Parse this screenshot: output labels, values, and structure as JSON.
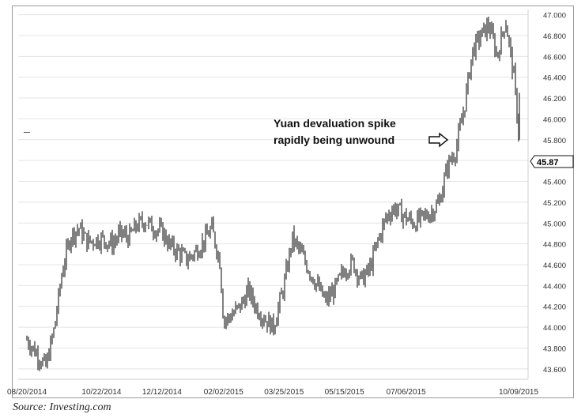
{
  "chart_data": {
    "type": "candlestick",
    "title": "",
    "xlabel": "",
    "ylabel": "",
    "ylim": [
      43.5,
      47.05
    ],
    "y_ticks": [
      "47.000",
      "46.800",
      "46.600",
      "46.400",
      "46.200",
      "46.000",
      "45.800",
      "45.600",
      "45.400",
      "45.200",
      "45.000",
      "44.800",
      "44.600",
      "44.400",
      "44.200",
      "44.000",
      "43.800",
      "43.600"
    ],
    "x_ticks": [
      "08/20/2014",
      "10/22/2014",
      "12/12/2014",
      "02/02/2015",
      "03/25/2015",
      "05/15/2015",
      "07/06/2015",
      "10/09/2015"
    ],
    "last_price_label": "45.87",
    "grid": true,
    "annotation": {
      "lines": [
        "Yuan devaluation spike",
        "rapidly being unwound"
      ]
    },
    "series": [
      {
        "name": "",
        "values": [
          [
            "08/20/2014",
            43.88
          ],
          [
            "09/05/2014",
            43.62
          ],
          [
            "09/12/2014",
            43.98
          ],
          [
            "09/19/2014",
            44.55
          ],
          [
            "09/26/2014",
            44.88
          ],
          [
            "10/03/2014",
            44.95
          ],
          [
            "10/10/2014",
            44.82
          ],
          [
            "10/22/2014",
            44.85
          ],
          [
            "10/31/2014",
            44.8
          ],
          [
            "11/07/2014",
            44.9
          ],
          [
            "11/14/2014",
            44.86
          ],
          [
            "11/21/2014",
            44.98
          ],
          [
            "11/28/2014",
            45.02
          ],
          [
            "12/05/2014",
            44.95
          ],
          [
            "12/12/2014",
            44.92
          ],
          [
            "12/19/2014",
            44.78
          ],
          [
            "12/26/2014",
            44.72
          ],
          [
            "01/02/2015",
            44.65
          ],
          [
            "01/09/2015",
            44.72
          ],
          [
            "01/16/2015",
            44.82
          ],
          [
            "01/23/2015",
            44.95
          ],
          [
            "01/30/2015",
            44.62
          ],
          [
            "02/02/2015",
            44.05
          ],
          [
            "02/09/2015",
            44.12
          ],
          [
            "02/16/2015",
            44.2
          ],
          [
            "02/23/2015",
            44.35
          ],
          [
            "03/02/2015",
            44.18
          ],
          [
            "03/09/2015",
            44.08
          ],
          [
            "03/16/2015",
            44.0
          ],
          [
            "03/25/2015",
            44.4
          ],
          [
            "04/01/2015",
            44.85
          ],
          [
            "04/08/2015",
            44.72
          ],
          [
            "04/15/2015",
            44.55
          ],
          [
            "04/22/2015",
            44.4
          ],
          [
            "04/29/2015",
            44.25
          ],
          [
            "05/06/2015",
            44.35
          ],
          [
            "05/15/2015",
            44.55
          ],
          [
            "05/22/2015",
            44.62
          ],
          [
            "05/29/2015",
            44.45
          ],
          [
            "06/05/2015",
            44.55
          ],
          [
            "06/12/2015",
            44.82
          ],
          [
            "06/19/2015",
            45.05
          ],
          [
            "06/26/2015",
            45.15
          ],
          [
            "07/06/2015",
            45.05
          ],
          [
            "07/13/2015",
            45.0
          ],
          [
            "07/20/2015",
            45.05
          ],
          [
            "07/27/2015",
            45.1
          ],
          [
            "08/03/2015",
            45.2
          ],
          [
            "08/10/2015",
            45.55
          ],
          [
            "08/17/2015",
            45.7
          ],
          [
            "08/24/2015",
            46.1
          ],
          [
            "08/31/2015",
            46.65
          ],
          [
            "09/07/2015",
            46.8
          ],
          [
            "09/14/2015",
            46.9
          ],
          [
            "09/21/2015",
            46.6
          ],
          [
            "09/28/2015",
            46.95
          ],
          [
            "10/05/2015",
            46.4
          ],
          [
            "10/09/2015",
            45.87
          ]
        ]
      }
    ]
  },
  "caption": "Source: Investing.com"
}
